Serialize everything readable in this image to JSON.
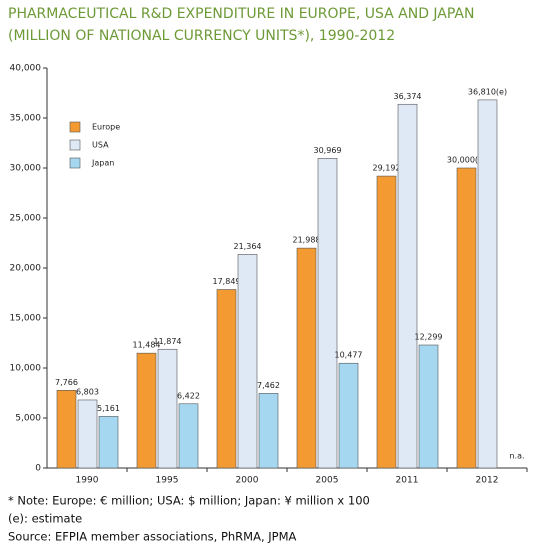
{
  "chart_data": {
    "type": "bar",
    "title": "PHARMACEUTICAL R&D EXPENDITURE IN EUROPE, USA AND JAPAN",
    "subtitle": "(MILLION OF NATIONAL CURRENCY UNITS*), 1990-2012",
    "categories": [
      "1990",
      "1995",
      "2000",
      "2005",
      "2011",
      "2012"
    ],
    "series": [
      {
        "name": "Europe",
        "color": "#f39b32",
        "values": [
          7766,
          11484,
          17849,
          21988,
          29192,
          30000
        ],
        "value_labels": [
          "7,766",
          "11,484",
          "17,849",
          "21,988",
          "29,192",
          "30,000(e)"
        ]
      },
      {
        "name": "USA",
        "color": "#dfe9f6",
        "values": [
          6803,
          11874,
          21364,
          30969,
          36374,
          36810
        ],
        "value_labels": [
          "6,803",
          "11,874",
          "21,364",
          "30,969",
          "36,374",
          "36,810(e)"
        ]
      },
      {
        "name": "Japan",
        "color": "#a5d8f0",
        "values": [
          5161,
          6422,
          7462,
          10477,
          12299,
          null
        ],
        "value_labels": [
          "5,161",
          "6,422",
          "7,462",
          "10,477",
          "12,299",
          null
        ]
      }
    ],
    "annotation": "n.a.",
    "ylim": [
      0,
      40000
    ],
    "yticks": [
      0,
      {
        "value": 5000,
        "label": "5,000"
      },
      {
        "value": 10000,
        "label": "10,000"
      },
      {
        "value": 15000,
        "label": "15,000"
      },
      {
        "value": 20000,
        "label": "20,000"
      },
      {
        "value": 25000,
        "label": "25,000"
      },
      {
        "value": 30000,
        "label": "30,000"
      },
      {
        "value": 35000,
        "label": "35,000"
      },
      {
        "value": 40000,
        "label": "40,000"
      }
    ],
    "legend": "upper left",
    "notes": [
      "* Note: Europe: € million; USA: $ million; Japan: ¥ million x 100",
      "(e): estimate",
      "Source: EFPIA member associations, PhRMA, JPMA"
    ]
  }
}
